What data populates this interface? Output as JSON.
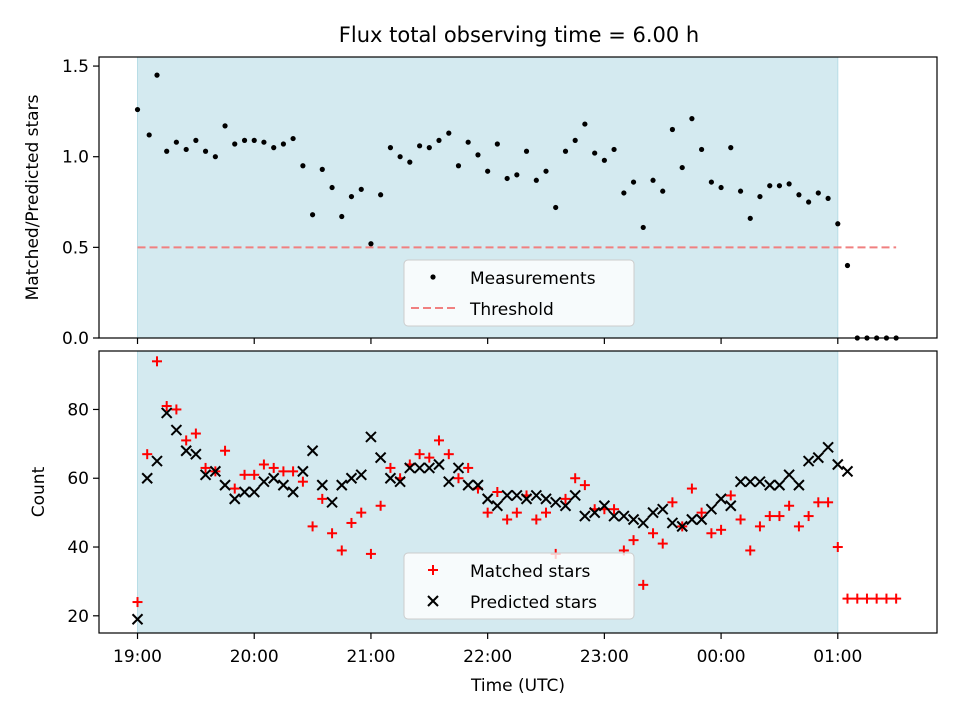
{
  "title": "Flux total observing time = 6.00 h",
  "colors": {
    "shade": "#d4eaf0",
    "shade_edge": "#b8dde6",
    "measurement": "#000000",
    "threshold": "#f08080",
    "matched": "#ff0000",
    "predicted": "#000000"
  },
  "chart_data": [
    {
      "type": "scatter",
      "ylabel": "Matched/Predicted stars",
      "ylim": [
        0,
        1.55
      ],
      "yticks": [
        "0.0",
        "0.5",
        "1.0",
        "1.5"
      ],
      "xlim": [
        -0.33,
        6.85
      ],
      "shaded_span": [
        0,
        6.0
      ],
      "legend": [
        "Measurements",
        "Threshold"
      ],
      "legend_loc": "lower center",
      "threshold": {
        "y": 0.5,
        "x": [
          0,
          6.5
        ]
      },
      "series": [
        {
          "name": "Measurements",
          "x": [
            0.0,
            0.1,
            0.167,
            0.25,
            0.333,
            0.417,
            0.5,
            0.583,
            0.667,
            0.75,
            0.833,
            0.917,
            1.0,
            1.083,
            1.167,
            1.25,
            1.333,
            1.417,
            1.5,
            1.583,
            1.667,
            1.75,
            1.833,
            1.917,
            2.0,
            2.083,
            2.167,
            2.25,
            2.333,
            2.417,
            2.5,
            2.583,
            2.667,
            2.75,
            2.833,
            2.917,
            3.0,
            3.083,
            3.167,
            3.25,
            3.333,
            3.417,
            3.5,
            3.583,
            3.667,
            3.75,
            3.833,
            3.917,
            4.0,
            4.083,
            4.167,
            4.25,
            4.333,
            4.417,
            4.5,
            4.583,
            4.667,
            4.75,
            4.833,
            4.917,
            5.0,
            5.083,
            5.167,
            5.25,
            5.333,
            5.417,
            5.5,
            5.583,
            5.667,
            5.75,
            5.833,
            5.917,
            6.0,
            6.083,
            6.167,
            6.25,
            6.333,
            6.417,
            6.5
          ],
          "y": [
            1.26,
            1.12,
            1.45,
            1.03,
            1.08,
            1.04,
            1.09,
            1.03,
            1.0,
            1.17,
            1.07,
            1.09,
            1.09,
            1.08,
            1.05,
            1.07,
            1.1,
            0.95,
            0.68,
            0.93,
            0.83,
            0.67,
            0.78,
            0.82,
            0.52,
            0.79,
            1.05,
            1.0,
            0.97,
            1.06,
            1.05,
            1.09,
            1.13,
            0.95,
            1.08,
            1.01,
            0.92,
            1.07,
            0.88,
            0.9,
            1.03,
            0.87,
            0.92,
            0.72,
            1.03,
            1.09,
            1.18,
            1.02,
            0.98,
            1.04,
            0.8,
            0.86,
            0.61,
            0.87,
            0.81,
            1.15,
            0.94,
            1.21,
            1.04,
            0.86,
            0.83,
            1.05,
            0.81,
            0.66,
            0.78,
            0.84,
            0.84,
            0.85,
            0.79,
            0.75,
            0.8,
            0.77,
            0.63,
            0.4,
            0.0,
            0.0,
            0.0,
            0.0,
            0.0
          ]
        }
      ]
    },
    {
      "type": "scatter",
      "ylabel": "Count",
      "xlabel": "Time (UTC)",
      "ylim": [
        15,
        97
      ],
      "yticks": [
        "20",
        "40",
        "60",
        "80"
      ],
      "xlim": [
        -0.33,
        6.85
      ],
      "xticks": [
        "19:00",
        "20:00",
        "21:00",
        "22:00",
        "23:00",
        "00:00",
        "01:00"
      ],
      "shaded_span": [
        0,
        6.0
      ],
      "legend": [
        "Matched stars",
        "Predicted stars"
      ],
      "legend_loc": "lower center",
      "series": [
        {
          "name": "Matched stars",
          "marker": "plus",
          "x": [
            0.0,
            0.083,
            0.167,
            0.25,
            0.333,
            0.417,
            0.5,
            0.583,
            0.667,
            0.75,
            0.833,
            0.917,
            1.0,
            1.083,
            1.167,
            1.25,
            1.333,
            1.417,
            1.5,
            1.583,
            1.667,
            1.75,
            1.833,
            1.917,
            2.0,
            2.083,
            2.167,
            2.25,
            2.333,
            2.417,
            2.5,
            2.583,
            2.667,
            2.75,
            2.833,
            2.917,
            3.0,
            3.083,
            3.167,
            3.25,
            3.333,
            3.417,
            3.5,
            3.583,
            3.667,
            3.75,
            3.833,
            3.917,
            4.0,
            4.083,
            4.167,
            4.25,
            4.333,
            4.417,
            4.5,
            4.583,
            4.667,
            4.75,
            4.833,
            4.917,
            5.0,
            5.083,
            5.167,
            5.25,
            5.333,
            5.417,
            5.5,
            5.583,
            5.667,
            5.75,
            5.833,
            5.917,
            6.0,
            6.083,
            6.167,
            6.25,
            6.333,
            6.417,
            6.5
          ],
          "y": [
            24,
            67,
            94,
            81,
            80,
            71,
            73,
            63,
            62,
            68,
            57,
            61,
            61,
            64,
            63,
            62,
            62,
            59,
            46,
            54,
            44,
            39,
            47,
            50,
            38,
            52,
            63,
            60,
            64,
            67,
            66,
            71,
            67,
            60,
            63,
            57,
            50,
            56,
            48,
            50,
            55,
            48,
            50,
            38,
            54,
            60,
            58,
            51,
            51,
            51,
            39,
            42,
            29,
            44,
            41,
            53,
            46,
            57,
            50,
            44,
            45,
            55,
            48,
            39,
            46,
            49,
            49,
            52,
            46,
            49,
            53,
            53,
            40,
            25,
            25,
            25,
            25,
            25,
            25
          ]
        },
        {
          "name": "Predicted stars",
          "marker": "x",
          "x": [
            0.0,
            0.083,
            0.167,
            0.25,
            0.333,
            0.417,
            0.5,
            0.583,
            0.667,
            0.75,
            0.833,
            0.917,
            1.0,
            1.083,
            1.167,
            1.25,
            1.333,
            1.417,
            1.5,
            1.583,
            1.667,
            1.75,
            1.833,
            1.917,
            2.0,
            2.083,
            2.167,
            2.25,
            2.333,
            2.417,
            2.5,
            2.583,
            2.667,
            2.75,
            2.833,
            2.917,
            3.0,
            3.083,
            3.167,
            3.25,
            3.333,
            3.417,
            3.5,
            3.583,
            3.667,
            3.75,
            3.833,
            3.917,
            4.0,
            4.083,
            4.167,
            4.25,
            4.333,
            4.417,
            4.5,
            4.583,
            4.667,
            4.75,
            4.833,
            4.917,
            5.0,
            5.083,
            5.167,
            5.25,
            5.333,
            5.417,
            5.5,
            5.583,
            5.667,
            5.75,
            5.833,
            5.917,
            6.0,
            6.083
          ],
          "y": [
            19,
            60,
            65,
            79,
            74,
            68,
            67,
            61,
            62,
            58,
            54,
            56,
            56,
            59,
            60,
            58,
            56,
            62,
            68,
            58,
            53,
            58,
            60,
            61,
            72,
            66,
            60,
            59,
            63,
            63,
            63,
            64,
            59,
            63,
            58,
            58,
            54,
            52,
            55,
            55,
            54,
            55,
            54,
            53,
            52,
            55,
            49,
            50,
            52,
            49,
            49,
            48,
            47,
            50,
            51,
            47,
            46,
            48,
            48,
            51,
            54,
            52,
            59,
            59,
            59,
            58,
            58,
            61,
            58,
            65,
            66,
            69,
            64,
            62
          ]
        }
      ]
    }
  ]
}
